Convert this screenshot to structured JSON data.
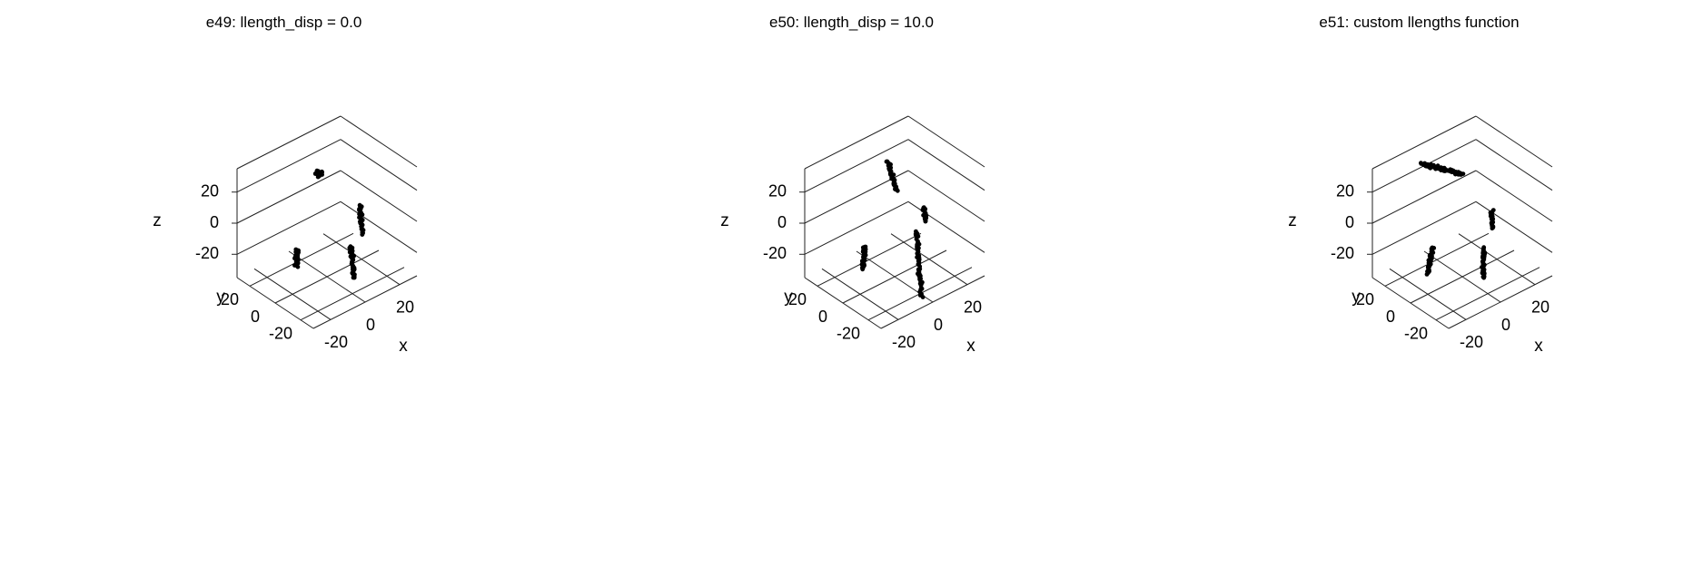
{
  "chart_data": [
    {
      "type": "scatter3d",
      "title": "e49: llength_disp = 0.0",
      "xlabel": "x",
      "ylabel": "y",
      "zlabel": "z",
      "xticks": [
        "-20",
        "0",
        "20"
      ],
      "yticks": [
        "-20",
        "0",
        "20"
      ],
      "zticks": [
        "-20",
        "0",
        "20"
      ],
      "xlim": [
        -30,
        30
      ],
      "ylim": [
        -30,
        30
      ],
      "zlim": [
        -35,
        35
      ],
      "marker_color": "#000000",
      "clusters": [
        {
          "p0": [
            -2,
            -24,
            -22
          ],
          "p1": [
            2,
            -16,
            -8
          ],
          "n": 40,
          "spread": 1.0
        },
        {
          "p0": [
            -22,
            -6,
            -12
          ],
          "p1": [
            -16,
            2,
            -10
          ],
          "n": 35,
          "spread": 0.9
        },
        {
          "p0": [
            18,
            -4,
            -16
          ],
          "p1": [
            22,
            4,
            -4
          ],
          "n": 30,
          "spread": 0.9
        },
        {
          "p0": [
            8,
            18,
            18
          ],
          "p1": [
            14,
            24,
            10
          ],
          "n": 45,
          "spread": 1.6
        }
      ]
    },
    {
      "type": "scatter3d",
      "title": "e50: llength_disp = 10.0",
      "xlabel": "x",
      "ylabel": "y",
      "zlabel": "z",
      "xticks": [
        "-20",
        "0",
        "20"
      ],
      "yticks": [
        "-20",
        "0",
        "20"
      ],
      "zticks": [
        "-20",
        "0",
        "20"
      ],
      "xlim": [
        -30,
        30
      ],
      "ylim": [
        -30,
        30
      ],
      "zlim": [
        -35,
        35
      ],
      "marker_color": "#000000",
      "clusters": [
        {
          "p0": [
            -5,
            -28,
            -30
          ],
          "p1": [
            4,
            -12,
            -2
          ],
          "n": 55,
          "spread": 1.0
        },
        {
          "p0": [
            -24,
            -8,
            -12
          ],
          "p1": [
            -14,
            4,
            -10
          ],
          "n": 40,
          "spread": 0.9
        },
        {
          "p0": [
            18,
            0,
            -10
          ],
          "p1": [
            20,
            4,
            -4
          ],
          "n": 20,
          "spread": 0.8
        },
        {
          "p0": [
            10,
            12,
            8
          ],
          "p1": [
            12,
            22,
            20
          ],
          "n": 40,
          "spread": 1.0
        }
      ]
    },
    {
      "type": "scatter3d",
      "title": "e51: custom llengths function",
      "xlabel": "x",
      "ylabel": "y",
      "zlabel": "z",
      "xticks": [
        "-20",
        "0",
        "20"
      ],
      "yticks": [
        "-20",
        "0",
        "20"
      ],
      "zticks": [
        "-20",
        "0",
        "20"
      ],
      "xlim": [
        -30,
        30
      ],
      "ylim": [
        -30,
        30
      ],
      "zlim": [
        -35,
        35
      ],
      "marker_color": "#000000",
      "clusters": [
        {
          "p0": [
            -4,
            -22,
            -22
          ],
          "p1": [
            2,
            -14,
            -10
          ],
          "n": 40,
          "spread": 1.0
        },
        {
          "p0": [
            -26,
            -8,
            -14
          ],
          "p1": [
            -14,
            4,
            -10
          ],
          "n": 45,
          "spread": 0.9
        },
        {
          "p0": [
            16,
            -2,
            -12
          ],
          "p1": [
            20,
            4,
            -6
          ],
          "n": 25,
          "spread": 0.8
        },
        {
          "p0": [
            -6,
            24,
            28
          ],
          "p1": [
            16,
            22,
            10
          ],
          "n": 70,
          "spread": 1.2
        }
      ]
    }
  ]
}
